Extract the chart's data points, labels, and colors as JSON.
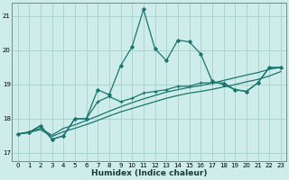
{
  "xlabel": "Humidex (Indice chaleur)",
  "xlim": [
    -0.5,
    23.5
  ],
  "ylim": [
    16.75,
    21.4
  ],
  "yticks": [
    17,
    18,
    19,
    20,
    21
  ],
  "xticks": [
    0,
    1,
    2,
    3,
    4,
    5,
    6,
    7,
    8,
    9,
    10,
    11,
    12,
    13,
    14,
    15,
    16,
    17,
    18,
    19,
    20,
    21,
    22,
    23
  ],
  "background_color": "#ceecea",
  "grid_color": "#aed4d0",
  "line_color": "#1a7570",
  "series1": [
    17.55,
    17.6,
    17.8,
    17.4,
    17.5,
    18.0,
    18.0,
    18.85,
    18.7,
    19.55,
    20.1,
    21.2,
    20.05,
    19.7,
    20.3,
    20.25,
    19.9,
    19.1,
    19.0,
    18.85,
    18.8,
    19.05,
    19.5,
    19.5
  ],
  "series2": [
    17.55,
    17.6,
    17.8,
    17.4,
    17.5,
    18.0,
    18.0,
    18.5,
    18.65,
    18.5,
    18.6,
    18.75,
    18.8,
    18.85,
    18.95,
    18.95,
    19.05,
    19.05,
    19.05,
    18.85,
    18.8,
    19.05,
    19.5,
    19.5
  ],
  "series3": [
    17.55,
    17.62,
    17.72,
    17.52,
    17.72,
    17.82,
    17.95,
    18.08,
    18.22,
    18.35,
    18.47,
    18.58,
    18.68,
    18.78,
    18.85,
    18.92,
    18.97,
    19.04,
    19.12,
    19.2,
    19.28,
    19.35,
    19.45,
    19.5
  ],
  "series4": [
    17.55,
    17.6,
    17.68,
    17.48,
    17.62,
    17.72,
    17.83,
    17.95,
    18.08,
    18.2,
    18.3,
    18.4,
    18.5,
    18.6,
    18.68,
    18.75,
    18.8,
    18.86,
    18.93,
    19.0,
    19.08,
    19.15,
    19.25,
    19.38
  ]
}
